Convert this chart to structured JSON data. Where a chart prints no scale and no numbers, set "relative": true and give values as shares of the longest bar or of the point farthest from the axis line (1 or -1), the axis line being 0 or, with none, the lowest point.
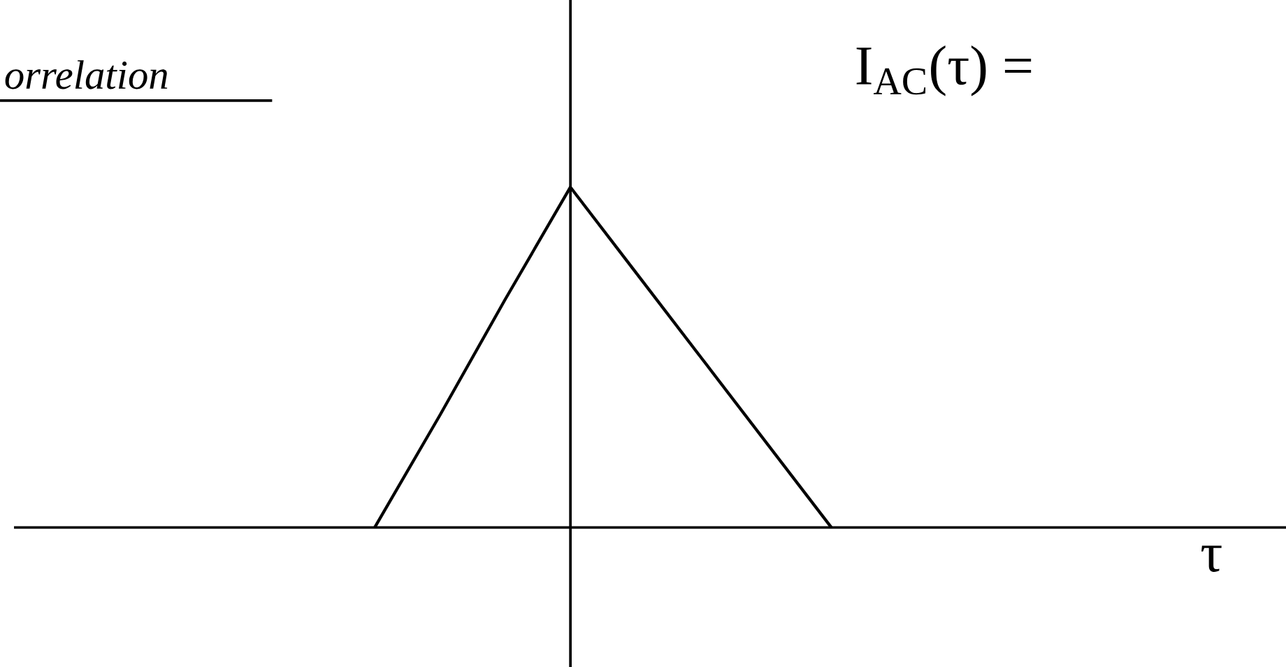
{
  "chart_data": {
    "type": "line",
    "relative": true,
    "title": "orrelation",
    "annotations": [
      "I$_{AC}$(τ) =",
      "τ"
    ],
    "categories": [
      null,
      null,
      null,
      null,
      null,
      null,
      null,
      null
    ],
    "series": [
      {
        "color": "#000000",
        "values": [
          0,
          0.33,
          0.67,
          1,
          0.75,
          0.5,
          0.25,
          0
        ]
      }
    ]
  }
}
